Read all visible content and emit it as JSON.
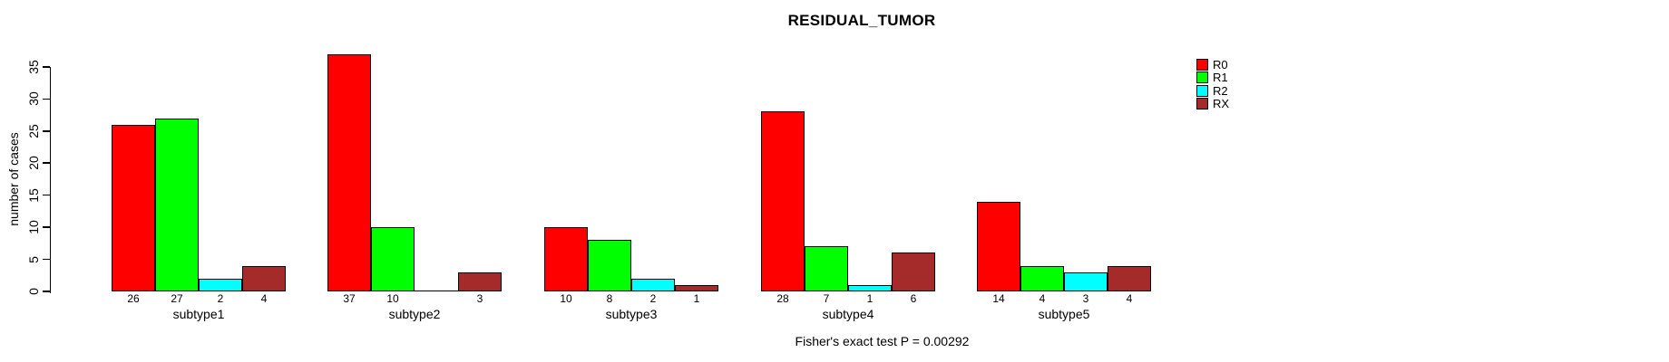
{
  "chart_data": {
    "type": "bar",
    "title": "RESIDUAL_TUMOR",
    "xlabel": "",
    "ylabel": "number of cases",
    "ylim": [
      0,
      37
    ],
    "yticks": [
      0,
      5,
      10,
      15,
      20,
      25,
      30,
      35
    ],
    "grid": false,
    "legend_position": "top-right",
    "categories": [
      "subtype1",
      "subtype2",
      "subtype3",
      "subtype4",
      "subtype5"
    ],
    "series": [
      {
        "name": "R0",
        "color": "#FF0000",
        "values": [
          26,
          37,
          10,
          28,
          14
        ]
      },
      {
        "name": "R1",
        "color": "#00FF00",
        "values": [
          27,
          10,
          8,
          7,
          4
        ]
      },
      {
        "name": "R2",
        "color": "#00FFFF",
        "values": [
          2,
          0,
          2,
          1,
          3
        ]
      },
      {
        "name": "RX",
        "color": "#A52A2A",
        "values": [
          4,
          3,
          1,
          6,
          4
        ]
      }
    ],
    "bar_value_labels": [
      [
        "26",
        "27",
        "2",
        "4"
      ],
      [
        "37",
        "10",
        "",
        "3"
      ],
      [
        "10",
        "8",
        "2",
        "1"
      ],
      [
        "28",
        "7",
        "1",
        "6"
      ],
      [
        "14",
        "4",
        "3",
        "4"
      ]
    ],
    "annotation": "Fisher's exact test P = 0.00292",
    "colors": {
      "axis": "#000000",
      "bar_border": "#000000",
      "background": "#FFFFFF"
    }
  }
}
